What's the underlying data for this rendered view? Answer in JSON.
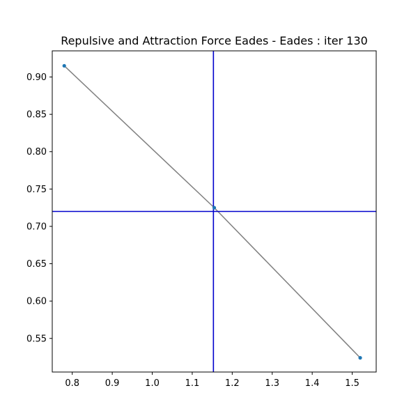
{
  "chart_data": {
    "type": "scatter",
    "title": "Repulsive and Attraction Force Eades - Eades : iter 130",
    "xlabel": "",
    "ylabel": "",
    "xlim": [
      0.75,
      1.56
    ],
    "ylim": [
      0.505,
      0.935
    ],
    "grid": false,
    "x_ticks": [
      0.8,
      0.9,
      1.0,
      1.1,
      1.2,
      1.3,
      1.4,
      1.5
    ],
    "x_tick_labels": [
      "0.8",
      "0.9",
      "1.0",
      "1.1",
      "1.2",
      "1.3",
      "1.4",
      "1.5"
    ],
    "y_ticks": [
      0.55,
      0.6,
      0.65,
      0.7,
      0.75,
      0.8,
      0.85,
      0.9
    ],
    "y_tick_labels": [
      "0.55",
      "0.60",
      "0.65",
      "0.70",
      "0.75",
      "0.80",
      "0.85",
      "0.90"
    ],
    "nodes": [
      {
        "x": 0.78,
        "y": 0.915
      },
      {
        "x": 1.155,
        "y": 0.725
      },
      {
        "x": 1.52,
        "y": 0.524
      }
    ],
    "edges": [
      [
        0,
        1
      ],
      [
        1,
        2
      ]
    ],
    "reference_lines": {
      "vertical_x": 1.153,
      "horizontal_y": 0.72
    },
    "colors": {
      "node": "#1f77b4",
      "edge": "#808080",
      "reference_line": "#0000cc",
      "axes": "#000000"
    }
  }
}
